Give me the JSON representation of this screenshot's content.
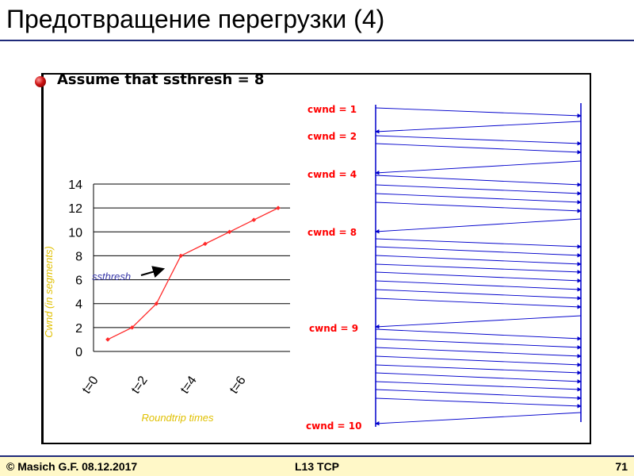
{
  "slide": {
    "title": "Предотвращение перегрузки (4)"
  },
  "bullet": {
    "text": "Assume that ssthresh = 8"
  },
  "footer": {
    "left": "© Masich G.F. 08.12.2017",
    "center": "L13 TCP",
    "right": "71"
  },
  "chart_data": {
    "type": "line",
    "title": "",
    "xlabel": "Roundtrip times",
    "ylabel": "Cwnd (in segments)",
    "ylim": [
      0,
      14
    ],
    "yticks": [
      "0",
      "2",
      "4",
      "6",
      "8",
      "10",
      "12",
      "14"
    ],
    "xtick_labels": [
      "t=0",
      "t=2",
      "t=4",
      "t=6"
    ],
    "x": [
      0,
      1,
      2,
      3,
      4,
      5,
      6,
      7
    ],
    "series": [
      {
        "values": [
          1,
          2,
          4,
          8,
          9,
          10,
          11,
          12
        ]
      }
    ],
    "annotations": [
      {
        "text": "ssthresh",
        "point_index": 3
      }
    ],
    "grid": true,
    "line_color": "#ff2a2a",
    "axis_label_color": "#e0c000"
  },
  "sequence": {
    "cwnd_labels": [
      "cwnd = 1",
      "cwnd = 2",
      "cwnd = 4",
      "cwnd = 8",
      "cwnd = 9",
      "cwnd = 10"
    ],
    "segments_per_round": [
      1,
      2,
      4,
      8,
      9,
      10
    ],
    "label_color": "#ff0000",
    "arrow_color": "#0000cc"
  }
}
